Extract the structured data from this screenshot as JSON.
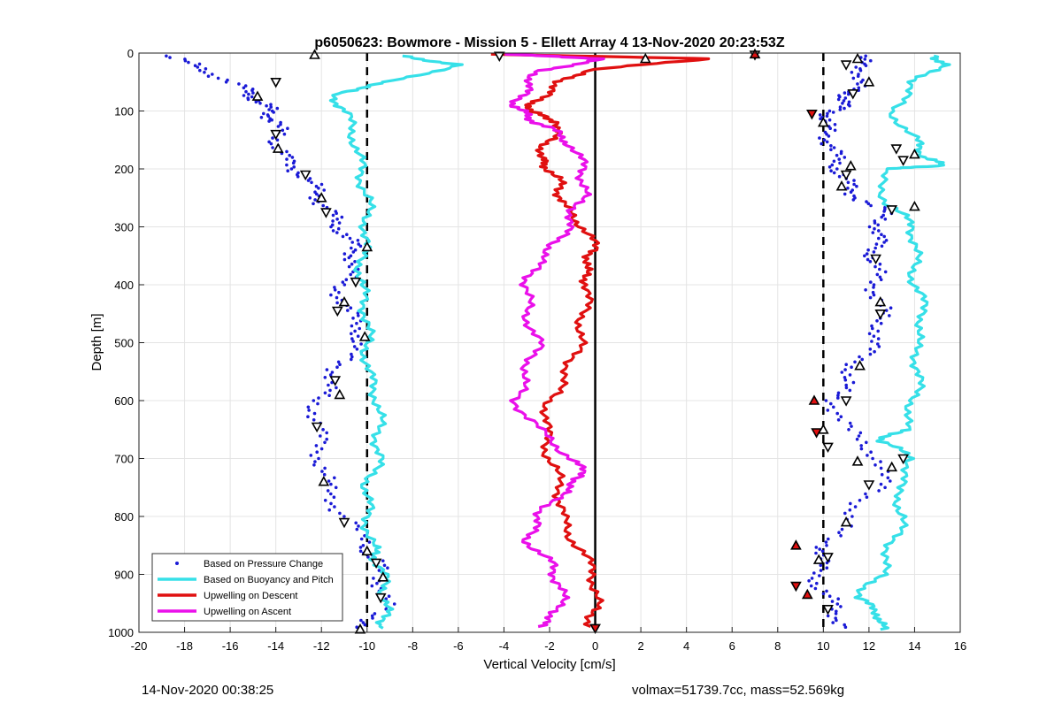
{
  "chart_data": {
    "type": "scatter",
    "title": "p6050623: Bowmore - Mission 5 - Ellett Array 4 13-Nov-2020 20:23:53Z",
    "xlabel": "Vertical Velocity [cm/s]",
    "ylabel": "Depth [m]",
    "xlim": [
      -20,
      16
    ],
    "ylim": [
      0,
      1000
    ],
    "y_reversed": true,
    "xticks": [
      -20,
      -18,
      -16,
      -14,
      -12,
      -10,
      -8,
      -6,
      -4,
      -2,
      0,
      2,
      4,
      6,
      8,
      10,
      12,
      14,
      16
    ],
    "yticks": [
      0,
      100,
      200,
      300,
      400,
      500,
      600,
      700,
      800,
      900,
      1000
    ],
    "grid": true,
    "legend_position": "bottom-left",
    "reference_lines": [
      {
        "x": -10,
        "style": "dashed",
        "color": "#000000"
      },
      {
        "x": 0,
        "style": "solid",
        "color": "#000000"
      },
      {
        "x": 10,
        "style": "dashed",
        "color": "#000000"
      }
    ],
    "series": [
      {
        "name": "Based on Pressure Change",
        "color": "#1a1ad6",
        "marker": "dot",
        "profiles": [
          {
            "depth": [
              5,
              30,
              60,
              80,
              100,
              120,
              150,
              180,
              210,
              240,
              270,
              300,
              330,
              360,
              400,
              440,
              480,
              520,
              560,
              600,
              650,
              700,
              750,
              800,
              850,
              880,
              920,
              960,
              995
            ],
            "x": [
              -18.8,
              -17,
              -15.5,
              -14.8,
              -14.3,
              -14,
              -13.9,
              -13.7,
              -12.8,
              -12.2,
              -11.8,
              -11.2,
              -10.7,
              -10.5,
              -11.2,
              -11,
              -10.2,
              -10.8,
              -11.5,
              -12.2,
              -12.2,
              -12,
              -11.8,
              -11,
              -10,
              -9.6,
              -9.3,
              -9.3,
              -10.2
            ]
          },
          {
            "depth": [
              5,
              30,
              60,
              80,
              100,
              120,
              150,
              180,
              210,
              240,
              270,
              300,
              330,
              360,
              400,
              440,
              480,
              520,
              560,
              600,
              650,
              700,
              750,
              800,
              850,
              880,
              920,
              960,
              995
            ],
            "x": [
              11.5,
              11.8,
              11.3,
              11,
              10.5,
              10,
              10.3,
              10.5,
              10.8,
              11.2,
              12.5,
              12.5,
              12.3,
              12.2,
              12.3,
              12.5,
              12.5,
              11.8,
              11,
              10.5,
              11,
              12.5,
              12.5,
              11,
              10.2,
              9.8,
              9.8,
              10.5,
              11
            ]
          }
        ]
      },
      {
        "name": "Based on Buoyancy and Pitch",
        "color": "#36e0e8",
        "marker": "line",
        "profiles": [
          {
            "depth": [
              5,
              20,
              50,
              70,
              100,
              150,
              200,
              250,
              300,
              350,
              400,
              450,
              500,
              550,
              600,
              650,
              700,
              750,
              800,
              850,
              880,
              920,
              960,
              993
            ],
            "x": [
              -8.5,
              -6,
              -9,
              -11.5,
              -11,
              -10.5,
              -10.3,
              -10,
              -10,
              -10.2,
              -10.3,
              -10,
              -10,
              -10,
              -9.5,
              -9.5,
              -9.5,
              -10,
              -10,
              -9.8,
              -9.5,
              -9.2,
              -9.2,
              -9.3
            ]
          },
          {
            "depth": [
              5,
              20,
              50,
              100,
              150,
              180,
              195,
              200,
              260,
              300,
              350,
              400,
              450,
              500,
              550,
              600,
              650,
              670,
              700,
              750,
              800,
              850,
              900,
              940,
              970,
              995
            ],
            "x": [
              15,
              15.2,
              14,
              13,
              14,
              14.5,
              15.2,
              12.5,
              12.8,
              14,
              14,
              14,
              14.5,
              14,
              14.2,
              14,
              13.5,
              12.5,
              14,
              13.2,
              13.5,
              13,
              12.5,
              11.5,
              12.5,
              12.5
            ]
          }
        ]
      },
      {
        "name": "Upwelling on Descent",
        "color": "#e01010",
        "marker": "line",
        "profiles": [
          {
            "depth": [
              2,
              10,
              30,
              50,
              80,
              100,
              120,
              150,
              180,
              200,
              230,
              260,
              300,
              340,
              370,
              400,
              450,
              500,
              550,
              600,
              650,
              700,
              750,
              800,
              850,
              900,
              950,
              990
            ],
            "x": [
              -4.5,
              5,
              -0.5,
              -1.5,
              -2.5,
              -3,
              -1.5,
              -2,
              -2.5,
              -2,
              -1.5,
              -1.5,
              -0.5,
              0,
              -0.5,
              -0.3,
              -0.5,
              -0.7,
              -1.2,
              -2,
              -2.2,
              -2,
              -1.5,
              -1.5,
              -0.8,
              0,
              0,
              -0.2
            ]
          }
        ]
      },
      {
        "name": "Upwelling on Ascent",
        "color": "#ea10ea",
        "marker": "line",
        "profiles": [
          {
            "depth": [
              2,
              10,
              30,
              60,
              90,
              110,
              130,
              160,
              200,
              240,
              280,
              320,
              360,
              400,
              450,
              500,
              550,
              600,
              650,
              700,
              730,
              760,
              800,
              840,
              880,
              920,
              960,
              990
            ],
            "x": [
              -4,
              0.5,
              -2.5,
              -3,
              -3.5,
              -3,
              -2,
              -1,
              -0.5,
              -0.5,
              -1,
              -1.5,
              -2.5,
              -3,
              -3,
              -2.5,
              -3,
              -3.5,
              -2.5,
              -1,
              -0.5,
              -1.5,
              -2.5,
              -3,
              -2,
              -1.5,
              -1.5,
              -2.5
            ]
          }
        ]
      },
      {
        "name": "",
        "color": "#000000",
        "marker": "triangle-outline",
        "x": [
          -12.3,
          -14,
          -14.8,
          -14,
          -13.9,
          -12.7,
          -12,
          -11.8,
          -10,
          -10.5,
          -11,
          -11.3,
          -10.1,
          -11.4,
          -11.2,
          -12.2,
          -11.9,
          -11,
          -10,
          -9.6,
          -9.3,
          -9.4,
          -10.3,
          -4.2,
          2.2,
          7,
          11.5,
          11,
          12,
          11.3,
          10,
          13.2,
          14,
          13.5,
          11.2,
          11,
          10.8,
          13,
          14,
          12.3,
          12.5,
          12.5,
          11.6,
          11,
          10,
          10.2,
          11.5,
          13.5,
          13,
          12,
          11,
          10.2,
          9.8,
          10.2
        ],
        "y": [
          3,
          50,
          75,
          140,
          165,
          210,
          250,
          275,
          335,
          395,
          430,
          445,
          490,
          565,
          590,
          645,
          740,
          810,
          860,
          880,
          905,
          940,
          995,
          5,
          10,
          3,
          10,
          20,
          50,
          70,
          120,
          165,
          175,
          185,
          195,
          210,
          230,
          270,
          265,
          355,
          430,
          450,
          540,
          600,
          650,
          680,
          705,
          700,
          715,
          745,
          810,
          870,
          875,
          960
        ]
      },
      {
        "name": "",
        "color": "#e01010",
        "marker": "triangle-filled",
        "x": [
          7,
          9.5,
          9.6,
          9.7,
          8.8,
          8.8,
          9.3,
          0
        ],
        "y": [
          2,
          105,
          600,
          655,
          850,
          920,
          935,
          993
        ]
      }
    ]
  },
  "footer": {
    "left": "14-Nov-2020 00:38:25",
    "right": "volmax=51739.7cc, mass=52.569kg"
  }
}
